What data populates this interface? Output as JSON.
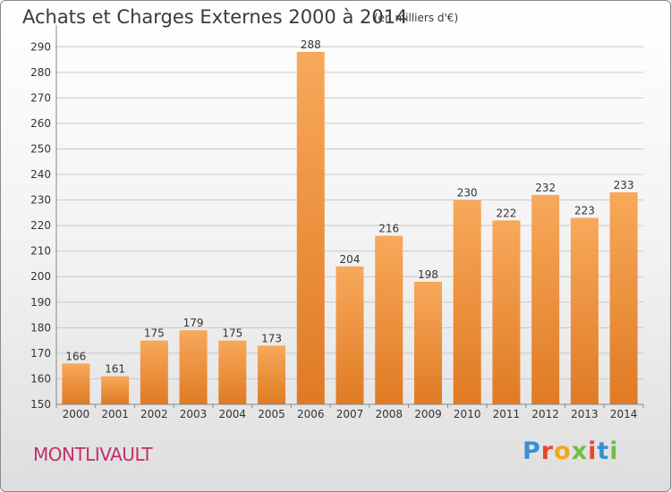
{
  "header": {
    "title": "Achats et Charges Externes 2000 à 2014",
    "subtitle": "(en milliers d'€)"
  },
  "footer": {
    "place": "MONTLIVAULT",
    "logo_text": "Proxiti",
    "logo_colors": [
      "#3a8fd6",
      "#e8442e",
      "#f2a51f",
      "#6cbe45",
      "#e8442e",
      "#3a8fd6",
      "#6cbe45"
    ]
  },
  "colors": {
    "bar_light": "#f7a95a",
    "bar_dark": "#e07a24",
    "grid": "#c8c8c8",
    "axis_text": "#333333"
  },
  "chart_data": {
    "type": "bar",
    "title": "Achats et Charges Externes 2000 à 2014",
    "subtitle": "(en milliers d'€)",
    "categories": [
      "2000",
      "2001",
      "2002",
      "2003",
      "2004",
      "2005",
      "2006",
      "2007",
      "2008",
      "2009",
      "2010",
      "2011",
      "2012",
      "2013",
      "2014"
    ],
    "values": [
      166,
      161,
      175,
      179,
      175,
      173,
      288,
      204,
      216,
      198,
      230,
      222,
      232,
      223,
      233
    ],
    "value_labels": [
      "166",
      "161",
      "175",
      "179",
      "175",
      "173",
      "288",
      "204",
      "216",
      "198",
      "230",
      "222",
      "232",
      "223",
      "233"
    ],
    "yticks": [
      "150",
      "160",
      "170",
      "180",
      "190",
      "200",
      "210",
      "220",
      "230",
      "240",
      "250",
      "260",
      "270",
      "280",
      "290"
    ],
    "ylim": [
      150,
      295
    ],
    "grid": true,
    "legend": "none"
  }
}
